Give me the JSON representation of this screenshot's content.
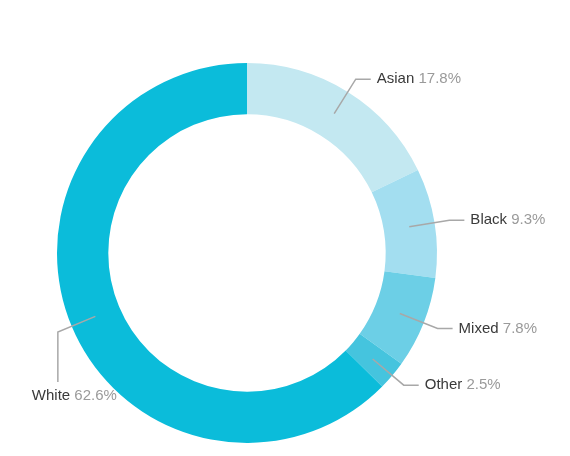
{
  "chart_data": {
    "type": "doughnut",
    "categories": [
      "Asian",
      "Black",
      "Mixed",
      "Other",
      "White"
    ],
    "values": [
      17.8,
      9.3,
      7.8,
      2.5,
      62.6
    ],
    "value_labels": [
      "17.8%",
      "9.3%",
      "7.8%",
      "2.5%",
      "62.6%"
    ],
    "colors": [
      "#c3e8f1",
      "#a3def0",
      "#6ccfe6",
      "#45c4de",
      "#0bbcda"
    ],
    "data_labels": true
  }
}
